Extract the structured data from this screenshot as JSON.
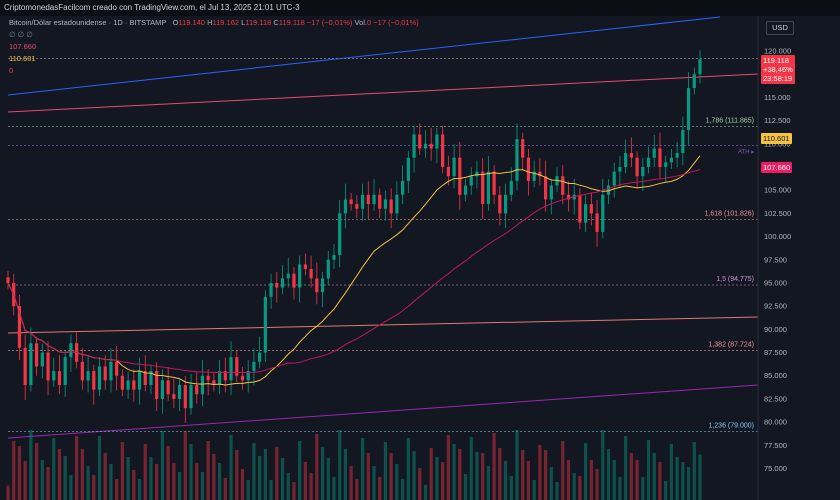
{
  "header": {
    "source_line": "CriptomonedasFacilcom creado con TradingView.com, el Jul 13, 2025 21:01 UTC-3"
  },
  "legend": {
    "symbol": "Bitcoin/Dólar estadounidense · 1D · BITSTAMP",
    "open_label": "O",
    "open": "119.140",
    "high_label": "H",
    "high": "119.162",
    "low_label": "L",
    "low": "119.118",
    "close_label": "C",
    "close": "119.118",
    "change": "−17 (−0,01%)",
    "vol_label": "Vol.",
    "vol": "0",
    "vol_change": "−17 (−0,01%)",
    "indicator_placeholders": "∅ ∅ ∅",
    "ind1_value": "107.660",
    "ind2_value": "110.601",
    "ind3_value": "0"
  },
  "price_scale": {
    "currency": "USD"
  },
  "tags": {
    "last_price": "119.118",
    "last_change": "+38,46%",
    "countdown": "23:58:19",
    "ma_fast": "110.601",
    "ma_slow": "107.660"
  },
  "colors": {
    "background": "#131722",
    "up": "#089981",
    "down": "#f23645",
    "ma_fast": "#f5c242",
    "ma_slow": "#c2185b",
    "upper_channel": "#2962ff",
    "mid_channel": "#e84a6f",
    "lower_channel": "#9c27b0",
    "lower_mid_channel": "#e07a6f"
  },
  "chart_data": {
    "type": "candlestick",
    "interval": "1D",
    "exchange": "BITSTAMP",
    "y_axis": {
      "ticks": [
        75000,
        77500,
        80000,
        82500,
        85000,
        87500,
        90000,
        92500,
        95000,
        97500,
        100000,
        102500,
        105000,
        107500,
        110000,
        112500,
        115000,
        117500,
        120000
      ],
      "tick_labels": [
        "75.000",
        "77.500",
        "80.000",
        "82.500",
        "85.000",
        "87.500",
        "90.000",
        "92.500",
        "95.000",
        "97.500",
        "100.000",
        "102.500",
        "105.000",
        "107.500",
        "110.000",
        "112.500",
        "115.000",
        "117.500",
        "120.000"
      ],
      "range": [
        72500,
        121500
      ]
    },
    "fib_levels": [
      {
        "label": "1,786 (111.865)",
        "value": 111865,
        "color": "#a5d6a7"
      },
      {
        "label": "1,618 (101.826)",
        "value": 101826,
        "color": "#ef9a9a"
      },
      {
        "label": "1,5 (94.775)",
        "value": 94775,
        "color": "#ce93d8"
      },
      {
        "label": "1,382 (87.724)",
        "value": 87724,
        "color": "#ef9a9a"
      },
      {
        "label": "1,236 (79.000)",
        "value": 79000,
        "color": "#90caf9"
      }
    ],
    "extra_levels": [
      {
        "label": "",
        "value": 119200,
        "color": "#787b86"
      },
      {
        "label": "ATH ▸",
        "value": 109800,
        "color": "#7e57c2"
      }
    ],
    "approx_closes": [
      95000,
      92500,
      88000,
      84000,
      88500,
      86000,
      87500,
      84500,
      85500,
      84000,
      87000,
      88500,
      86500,
      84500,
      85500,
      83500,
      86000,
      84500,
      86500,
      85000,
      83500,
      84500,
      83500,
      85500,
      84000,
      85500,
      82500,
      84500,
      83000,
      82500,
      84000,
      81500,
      84000,
      83000,
      85000,
      84500,
      84000,
      85500,
      84500,
      87000,
      85000,
      84500,
      85500,
      86500,
      87500,
      93500,
      95000,
      94500,
      95500,
      96000,
      94500,
      97000,
      96500,
      95500,
      94000,
      95500,
      97500,
      98000,
      102500,
      104000,
      103500,
      103000,
      104500,
      103500,
      104500,
      103000,
      104000,
      102500,
      104500,
      106000,
      108500,
      111000,
      109500,
      110000,
      109500,
      111000,
      107500,
      106500,
      108500,
      104500,
      105500,
      106500,
      107000,
      103500,
      107000,
      104500,
      102500,
      104500,
      106000,
      110500,
      108500,
      106000,
      107000,
      106500,
      104000,
      105500,
      106500,
      104500,
      104000,
      104500,
      101500,
      103500,
      102500,
      100500,
      104500,
      105500,
      107000,
      107500,
      109000,
      108500,
      106500,
      107500,
      108500,
      109500,
      107500,
      108000,
      108500,
      109000,
      111500,
      116000,
      117500,
      119118
    ],
    "moving_averages": [
      {
        "name": "",
        "color": "#f5c242",
        "last": 110601
      },
      {
        "name": "",
        "color": "#c2185b",
        "last": 107660
      }
    ]
  }
}
